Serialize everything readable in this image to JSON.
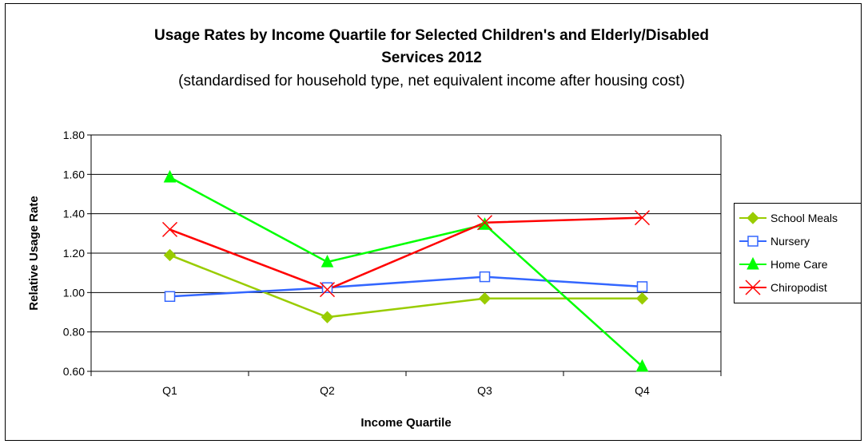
{
  "chart_data": {
    "type": "line",
    "title_line1": "Usage Rates by Income Quartile for Selected Children's and Elderly/Disabled",
    "title_line2": "Services 2012",
    "subtitle": "(standardised for household type, net equivalent income after housing cost)",
    "xlabel": "Income Quartile",
    "ylabel": "Relative Usage Rate",
    "categories": [
      "Q1",
      "Q2",
      "Q3",
      "Q4"
    ],
    "ylim": [
      0.6,
      1.8
    ],
    "yticks": [
      "0.60",
      "0.80",
      "1.00",
      "1.20",
      "1.40",
      "1.60",
      "1.80"
    ],
    "grid": true,
    "legend_position": "right",
    "series": [
      {
        "name": "School Meals",
        "values": [
          1.19,
          0.875,
          0.97,
          0.97
        ],
        "color": "#99CC00",
        "marker": "diamond"
      },
      {
        "name": "Nursery",
        "values": [
          0.98,
          1.025,
          1.08,
          1.03
        ],
        "color": "#3366FF",
        "marker": "square"
      },
      {
        "name": "Home Care",
        "values": [
          1.585,
          1.155,
          1.345,
          0.625
        ],
        "color": "#00FF00",
        "marker": "triangle"
      },
      {
        "name": "Chiropodist",
        "values": [
          1.32,
          1.015,
          1.355,
          1.38
        ],
        "color": "#FF0000",
        "marker": "x"
      }
    ]
  }
}
